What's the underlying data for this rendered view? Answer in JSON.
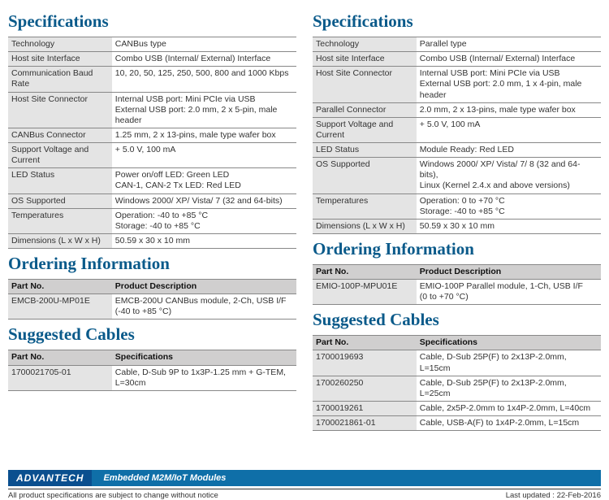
{
  "left": {
    "spec_title": "Specifications",
    "spec_rows": [
      [
        "Technology",
        "CANBus type"
      ],
      [
        "Host site Interface",
        "Combo USB (Internal/ External) Interface"
      ],
      [
        "Communication Baud Rate",
        "10, 20, 50, 125, 250, 500, 800 and 1000 Kbps"
      ],
      [
        "Host Site Connector",
        "Internal USB port: Mini PCIe via USB\nExternal USB port: 2.0 mm, 2 x 5-pin, male header"
      ],
      [
        "CANBus Connector",
        "1.25 mm, 2 x 13-pins, male type wafer box"
      ],
      [
        "Support Voltage and Current",
        "+ 5.0 V, 100 mA"
      ],
      [
        "LED Status",
        "Power on/off LED: Green LED\nCAN-1, CAN-2 Tx LED: Red LED"
      ],
      [
        "OS Supported",
        "Windows 2000/ XP/ Vista/ 7 (32 and 64-bits)"
      ],
      [
        "Temperatures",
        "Operation: -40 to +85 °C\nStorage: -40 to +85 °C"
      ],
      [
        "Dimensions (L x W x H)",
        "50.59 x 30 x 10 mm"
      ]
    ],
    "order_title": "Ordering Information",
    "order_header": [
      "Part No.",
      "Product Description"
    ],
    "order_rows": [
      [
        "EMCB-200U-MP01E",
        "EMCB-200U CANBus module, 2-Ch, USB I/F\n(-40 to +85 °C)"
      ]
    ],
    "cable_title": "Suggested Cables",
    "cable_header": [
      "Part No.",
      "Specifications"
    ],
    "cable_rows": [
      [
        "1700021705-01",
        "Cable, D-Sub 9P to 1x3P-1.25 mm + G-TEM,\nL=30cm"
      ]
    ]
  },
  "right": {
    "spec_title": "Specifications",
    "spec_rows": [
      [
        "Technology",
        "Parallel type"
      ],
      [
        "Host site Interface",
        "Combo USB (Internal/ External) Interface"
      ],
      [
        "Host Site Connector",
        "Internal USB port: Mini PCIe via USB\nExternal USB port: 2.0 mm, 1 x 4-pin, male header"
      ],
      [
        "Parallel Connector",
        "2.0 mm, 2 x 13-pins, male type wafer box"
      ],
      [
        "Support Voltage and Current",
        "+ 5.0 V, 100 mA"
      ],
      [
        "LED Status",
        "Module Ready: Red LED"
      ],
      [
        "OS Supported",
        "Windows 2000/ XP/ Vista/ 7/ 8 (32 and 64-bits),\nLinux (Kernel 2.4.x and above versions)"
      ],
      [
        "Temperatures",
        "Operation: 0 to +70 °C\nStorage: -40 to +85 °C"
      ],
      [
        "Dimensions (L x W x H)",
        "50.59 x 30 x 10 mm"
      ]
    ],
    "order_title": "Ordering Information",
    "order_header": [
      "Part No.",
      "Product Description"
    ],
    "order_rows": [
      [
        "EMIO-100P-MPU01E",
        "EMIO-100P Parallel module, 1-Ch, USB I/F\n(0 to +70 °C)"
      ]
    ],
    "cable_title": "Suggested Cables",
    "cable_header": [
      "Part No.",
      "Specifications"
    ],
    "cable_rows": [
      [
        "1700019693",
        "Cable, D-Sub 25P(F) to 2x13P-2.0mm, L=15cm"
      ],
      [
        "1700260250",
        "Cable, D-Sub 25P(F) to 2x13P-2.0mm, L=25cm"
      ],
      [
        "1700019261",
        "Cable, 2x5P-2.0mm to 1x4P-2.0mm, L=40cm"
      ],
      [
        "1700021861-01",
        "Cable, USB-A(F) to 1x4P-2.0mm, L=15cm"
      ]
    ]
  },
  "footer": {
    "logo": "ADVANTECH",
    "strip": "Embedded M2M/IoT Modules",
    "note": "All product specifications are subject to change without notice",
    "updated": "Last updated : 22-Feb-2016"
  }
}
